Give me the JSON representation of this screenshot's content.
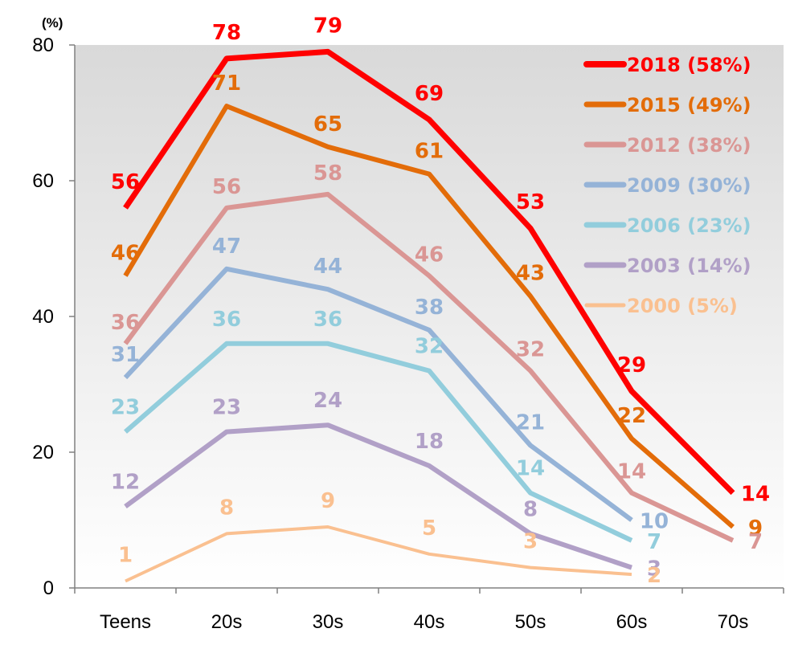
{
  "chart_data": {
    "type": "line",
    "title": "",
    "xlabel": "",
    "ylabel": "",
    "unit_label": "(%)",
    "ylim": [
      0,
      80
    ],
    "yticks": [
      "0",
      "20",
      "40",
      "60",
      "80"
    ],
    "categories": [
      "Teens",
      "20s",
      "30s",
      "40s",
      "50s",
      "60s",
      "70s"
    ],
    "grid": false,
    "legend_position": "top-right",
    "series": [
      {
        "name": "2018",
        "legend": "2018 (58%)",
        "color": "#ff0000",
        "width": 7,
        "values": [
          56,
          78,
          79,
          69,
          53,
          29,
          14
        ],
        "labels": [
          "56",
          "78",
          "79",
          "69",
          "53",
          "29",
          "14"
        ]
      },
      {
        "name": "2015",
        "legend": "2015 (49%)",
        "color": "#e36c09",
        "width": 6,
        "values": [
          46,
          71,
          65,
          61,
          43,
          22,
          9
        ],
        "labels": [
          "46",
          "71",
          "65",
          "61",
          "43",
          "22",
          "9"
        ]
      },
      {
        "name": "2012",
        "legend": "2012 (38%)",
        "color": "#da9694",
        "width": 6,
        "values": [
          36,
          56,
          58,
          46,
          32,
          14,
          7
        ],
        "labels": [
          "36",
          "56",
          "58",
          "46",
          "32",
          "14",
          "7"
        ]
      },
      {
        "name": "2009",
        "legend": "2009 (30%)",
        "color": "#95b3d7",
        "width": 6,
        "values": [
          31,
          47,
          44,
          38,
          21,
          10,
          null
        ],
        "labels": [
          "31",
          "47",
          "44",
          "38",
          "21",
          "10",
          null
        ]
      },
      {
        "name": "2006",
        "legend": "2006 (23%)",
        "color": "#92cddc",
        "width": 6,
        "values": [
          23,
          36,
          36,
          32,
          14,
          7,
          null
        ],
        "labels": [
          "23",
          "36",
          "36",
          "32",
          "14",
          "7",
          null
        ]
      },
      {
        "name": "2003",
        "legend": "2003 (14%)",
        "color": "#b1a0c7",
        "width": 6,
        "values": [
          12,
          23,
          24,
          18,
          8,
          3,
          null
        ],
        "labels": [
          "12",
          "23",
          "24",
          "18",
          "8",
          "3",
          null
        ]
      },
      {
        "name": "2000",
        "legend": "2000 (5%)",
        "color": "#fac090",
        "width": 4,
        "values": [
          1,
          8,
          9,
          5,
          3,
          2,
          null
        ],
        "labels": [
          "1",
          "8",
          "9",
          "5",
          "3",
          "2",
          null
        ]
      }
    ]
  }
}
